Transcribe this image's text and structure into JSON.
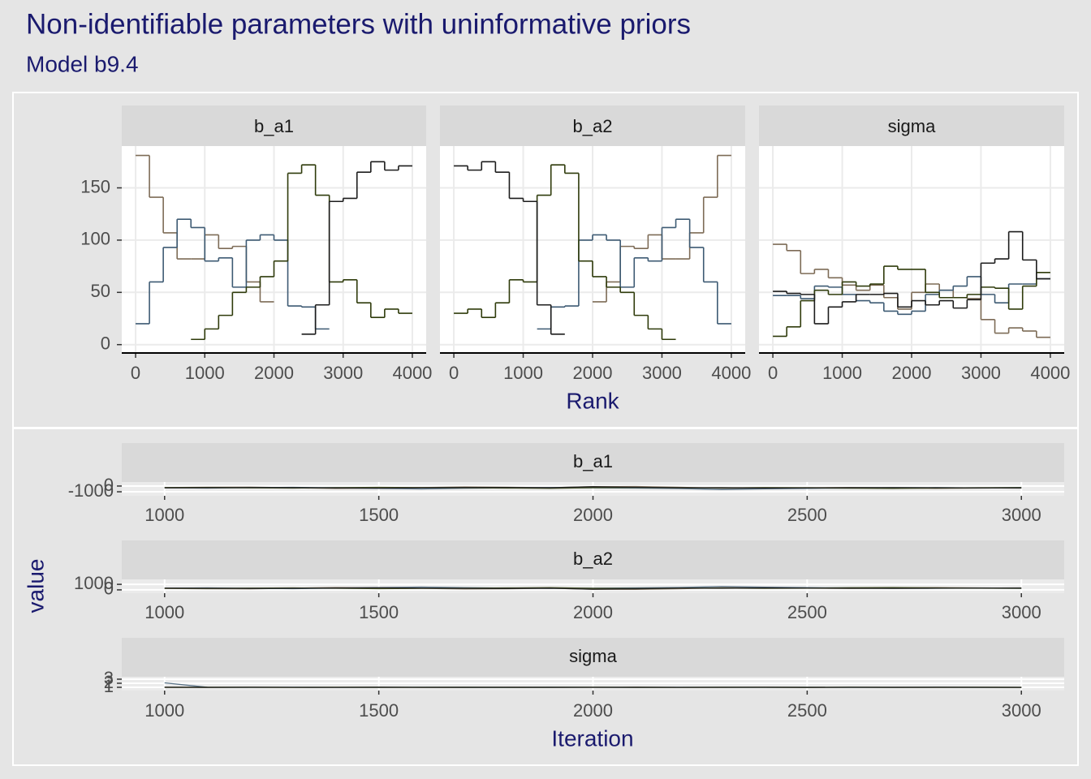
{
  "chart_data": [
    {
      "type": "step",
      "title": "Non-identifiable parameters with uninformative priors",
      "subtitle": "Model b9.4",
      "xlabel": "Rank",
      "xlim": [
        -200,
        4200
      ],
      "xticks": [
        0,
        1000,
        2000,
        3000,
        4000
      ],
      "ylim": [
        -8,
        190
      ],
      "yticks": [
        0,
        50,
        100,
        150
      ],
      "grid": true,
      "bins": [
        0,
        200,
        400,
        600,
        800,
        1000,
        1200,
        1400,
        1600,
        1800,
        2000,
        2200,
        2400,
        2600,
        2800,
        3000,
        3200,
        3400,
        3600,
        3800,
        4000
      ],
      "facets": [
        {
          "title": "b_a1",
          "series": [
            {
              "color": "#7d6b56",
              "values": [
                181,
                141,
                107,
                82,
                82,
                105,
                92,
                94,
                60,
                41,
                null,
                null,
                null,
                null,
                null,
                null,
                null,
                null,
                null,
                null
              ]
            },
            {
              "color": "#3d5a73",
              "values": [
                20,
                60,
                93,
                120,
                112,
                80,
                83,
                55,
                100,
                105,
                100,
                37,
                36,
                15,
                null,
                null,
                null,
                null,
                null,
                null
              ]
            },
            {
              "color": "#2f3b0b",
              "values": [
                null,
                null,
                null,
                null,
                5,
                15,
                28,
                50,
                55,
                65,
                80,
                164,
                172,
                143,
                60,
                62,
                40,
                26,
                34,
                30
              ]
            },
            {
              "color": "#1c1c1c",
              "values": [
                null,
                null,
                null,
                null,
                null,
                null,
                null,
                null,
                null,
                null,
                null,
                null,
                10,
                38,
                137,
                140,
                165,
                175,
                167,
                171
              ]
            }
          ]
        },
        {
          "title": "b_a2",
          "series": [
            {
              "color": "#7d6b56",
              "values": [
                null,
                null,
                null,
                null,
                null,
                null,
                null,
                null,
                null,
                null,
                41,
                60,
                94,
                92,
                105,
                82,
                82,
                107,
                141,
                181
              ]
            },
            {
              "color": "#3d5a73",
              "values": [
                null,
                null,
                null,
                null,
                null,
                null,
                15,
                36,
                37,
                100,
                105,
                100,
                55,
                83,
                80,
                112,
                120,
                93,
                60,
                20
              ]
            },
            {
              "color": "#2f3b0b",
              "values": [
                30,
                34,
                26,
                40,
                62,
                60,
                143,
                172,
                164,
                80,
                65,
                55,
                50,
                28,
                15,
                5,
                null,
                null,
                null,
                null
              ]
            },
            {
              "color": "#1c1c1c",
              "values": [
                171,
                167,
                175,
                165,
                140,
                137,
                38,
                10,
                null,
                null,
                null,
                null,
                null,
                null,
                null,
                null,
                null,
                null,
                null,
                null
              ]
            }
          ]
        },
        {
          "title": "sigma",
          "series": [
            {
              "color": "#7d6b56",
              "values": [
                96,
                90,
                68,
                72,
                64,
                57,
                52,
                57,
                45,
                34,
                50,
                58,
                52,
                45,
                44,
                24,
                11,
                16,
                13,
                7
              ]
            },
            {
              "color": "#3d5a73",
              "values": [
                47,
                47,
                44,
                56,
                55,
                48,
                42,
                40,
                32,
                29,
                32,
                48,
                52,
                56,
                65,
                48,
                40,
                58,
                58,
                63
              ]
            },
            {
              "color": "#2f3b0b",
              "values": [
                8,
                17,
                42,
                52,
                48,
                60,
                56,
                58,
                75,
                72,
                72,
                50,
                45,
                45,
                48,
                55,
                54,
                34,
                56,
                69
              ]
            },
            {
              "color": "#1c1c1c",
              "values": [
                51,
                49,
                48,
                20,
                36,
                41,
                48,
                48,
                49,
                36,
                42,
                38,
                42,
                35,
                43,
                78,
                82,
                108,
                81,
                63
              ]
            }
          ]
        }
      ]
    },
    {
      "type": "line",
      "xlabel": "Iteration",
      "ylabel": "value",
      "xlim": [
        900,
        3100
      ],
      "xticks": [
        1000,
        1500,
        2000,
        2500,
        3000
      ],
      "x": [
        1000,
        1100,
        1200,
        1300,
        1400,
        1500,
        1600,
        1700,
        1800,
        1900,
        2000,
        2100,
        2200,
        2300,
        2400,
        2500,
        2600,
        2700,
        2800,
        2900,
        3000
      ],
      "facets": [
        {
          "title": "b_a1",
          "ylim": [
            -1700,
            700
          ],
          "yticks": [
            -1000,
            0
          ],
          "series": [
            {
              "color": "#7d6b56",
              "values": [
                -250,
                -200,
                -180,
                -300,
                -420,
                -350,
                -260,
                -150,
                -200,
                -280,
                -120,
                -80,
                -200,
                -380,
                -450,
                -300,
                -250,
                -320,
                -400,
                -350,
                -300
              ]
            },
            {
              "color": "#3d5a73",
              "values": [
                -300,
                -350,
                -280,
                -220,
                -300,
                -400,
                -500,
                -380,
                -320,
                -260,
                -300,
                -350,
                -420,
                -600,
                -480,
                -400,
                -350,
                -300,
                -280,
                -330,
                -260
              ]
            },
            {
              "color": "#2f3b0b",
              "values": [
                -280,
                -260,
                -320,
                -350,
                -280,
                -220,
                -260,
                -300,
                -350,
                -400,
                -280,
                -250,
                -300,
                -320,
                -260,
                -300,
                -380,
                -420,
                -350,
                -300,
                -280
              ]
            },
            {
              "color": "#1c1c1c",
              "values": [
                -320,
                -300,
                -250,
                -280,
                -330,
                -380,
                -300,
                -260,
                -240,
                -300,
                -100,
                -200,
                -300,
                -280,
                -350,
                -320,
                -280,
                -250,
                -300,
                -320,
                -350
              ]
            }
          ]
        },
        {
          "title": "b_a2",
          "ylim": [
            -600,
            1900
          ],
          "yticks": [
            0,
            1000
          ],
          "series": [
            {
              "color": "#7d6b56",
              "values": [
                250,
                200,
                180,
                300,
                420,
                350,
                260,
                150,
                200,
                280,
                120,
                80,
                200,
                380,
                450,
                300,
                250,
                320,
                400,
                350,
                300
              ]
            },
            {
              "color": "#3d5a73",
              "values": [
                300,
                350,
                280,
                220,
                300,
                400,
                500,
                380,
                320,
                260,
                300,
                350,
                420,
                600,
                480,
                400,
                350,
                300,
                280,
                330,
                260
              ]
            },
            {
              "color": "#2f3b0b",
              "values": [
                280,
                260,
                320,
                350,
                280,
                220,
                260,
                300,
                350,
                400,
                280,
                250,
                300,
                320,
                260,
                300,
                380,
                420,
                350,
                300,
                280
              ]
            },
            {
              "color": "#1c1c1c",
              "values": [
                320,
                300,
                250,
                280,
                330,
                380,
                300,
                260,
                240,
                300,
                100,
                200,
                300,
                280,
                350,
                320,
                280,
                250,
                300,
                320,
                350
              ]
            }
          ]
        },
        {
          "title": "sigma",
          "ylim": [
            0.2,
            3.6
          ],
          "yticks": [
            1,
            2,
            3
          ],
          "series": [
            {
              "color": "#7d6b56",
              "values": [
                1.02,
                0.98,
                1.01,
                0.97,
                1.0,
                1.03,
                0.99,
                0.96,
                1.01,
                1.0,
                0.98,
                1.02,
                1.0,
                0.97,
                1.01,
                0.99,
                1.0,
                1.02,
                0.98,
                1.0,
                0.99
              ]
            },
            {
              "color": "#3d5a73",
              "values": [
                2.1,
                1.0,
                0.98,
                1.02,
                0.97,
                1.0,
                1.03,
                0.99,
                0.96,
                1.01,
                1.0,
                0.98,
                1.02,
                1.0,
                0.97,
                1.01,
                0.99,
                1.0,
                1.02,
                0.98,
                1.0
              ]
            },
            {
              "color": "#2f3b0b",
              "values": [
                0.99,
                1.01,
                1.0,
                0.98,
                1.02,
                0.99,
                1.0,
                1.01,
                0.97,
                1.0,
                1.02,
                0.99,
                0.98,
                1.01,
                1.0,
                0.99,
                1.02,
                0.98,
                1.0,
                1.01,
                0.99
              ]
            },
            {
              "color": "#1c1c1c",
              "values": [
                1.01,
                0.99,
                1.02,
                1.0,
                0.98,
                1.01,
                0.97,
                1.0,
                1.02,
                0.99,
                1.0,
                1.01,
                0.98,
                1.0,
                1.02,
                0.97,
                1.0,
                0.99,
                1.01,
                1.0,
                0.98
              ]
            }
          ]
        }
      ]
    }
  ]
}
